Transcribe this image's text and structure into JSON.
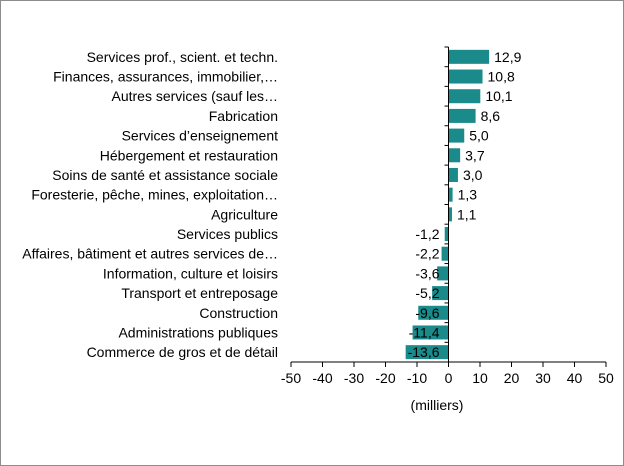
{
  "chart_data": {
    "type": "bar",
    "orientation": "horizontal",
    "categories": [
      "Services prof., scient. et techn.",
      "Finances, assurances, immobilier,…",
      "Autres services (sauf les…",
      "Fabrication",
      "Services d’enseignement",
      "Hébergement et restauration",
      "Soins de santé et assistance sociale",
      "Foresterie, pêche, mines, exploitation…",
      "Agriculture",
      "Services publics",
      "Affaires, bâtiment et autres services de…",
      "Information, culture et loisirs",
      "Transport et entreposage",
      "Construction",
      "Administrations publiques",
      "Commerce de gros et de détail"
    ],
    "values": [
      12.9,
      10.8,
      10.1,
      8.6,
      5.0,
      3.7,
      3.0,
      1.3,
      1.1,
      -1.2,
      -2.2,
      -3.6,
      -5.2,
      -9.6,
      -11.4,
      -13.6
    ],
    "value_labels": [
      "12,9",
      "10,8",
      "10,1",
      "8,6",
      "5,0",
      "3,7",
      "3,0",
      "1,3",
      "1,1",
      "-1,2",
      "-2,2",
      "-3,6",
      "-5,2",
      "-9,6",
      "-11,4",
      "-13,6"
    ],
    "xlim": [
      -50,
      50
    ],
    "xticks": [
      -50,
      -40,
      -30,
      -20,
      -10,
      0,
      10,
      20,
      30,
      40,
      50
    ],
    "xlabel": "(milliers)",
    "ylabel": "",
    "title": "",
    "grid": false,
    "bar_color": "#1a8a8a"
  }
}
